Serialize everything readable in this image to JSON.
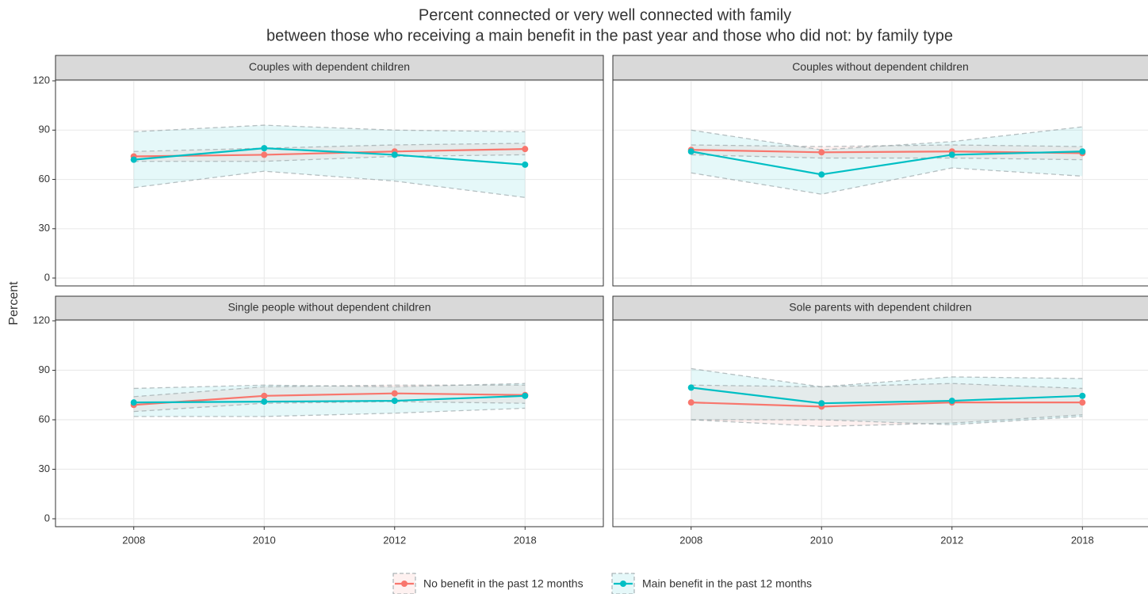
{
  "chart_data": {
    "type": "line",
    "title": "Percent connected or very well connected with family",
    "subtitle": "between those who receiving a main benefit in the past year and those who did not: by family type",
    "ylabel": "Percent",
    "categories": [
      "2008",
      "2010",
      "2012",
      "2018"
    ],
    "ylim": [
      -4.8,
      120.5
    ],
    "yticks": [
      0,
      30,
      60,
      90,
      120
    ],
    "grid": true,
    "legend_position": "bottom",
    "legend": [
      {
        "name": "No benefit in the past 12 months",
        "color": "#F8766D"
      },
      {
        "name": "Main benefit in the past 12 months",
        "color": "#00BFC4"
      }
    ],
    "panels": [
      {
        "title": "Couples with dependent children",
        "series": [
          {
            "values": [
              74,
              75,
              77,
              78.5
            ],
            "upper": [
              77,
              79,
              81,
              82
            ],
            "lower": [
              71,
              71,
              74,
              75
            ]
          },
          {
            "values": [
              72,
              79,
              75,
              69
            ],
            "upper": [
              89,
              93,
              90,
              89
            ],
            "lower": [
              55,
              65,
              59,
              49
            ]
          }
        ]
      },
      {
        "title": "Couples without dependent children",
        "series": [
          {
            "values": [
              78,
              76.5,
              77,
              76
            ],
            "upper": [
              81,
              80,
              81,
              80
            ],
            "lower": [
              75,
              73,
              73,
              72
            ]
          },
          {
            "values": [
              77,
              63,
              75,
              77
            ],
            "upper": [
              90,
              78,
              83,
              92
            ],
            "lower": [
              64,
              51,
              67,
              62
            ]
          }
        ]
      },
      {
        "title": "Single people without dependent children",
        "series": [
          {
            "values": [
              69,
              74.5,
              76,
              75
            ],
            "upper": [
              74,
              80,
              81,
              81
            ],
            "lower": [
              65,
              70,
              71,
              70
            ]
          },
          {
            "values": [
              70.5,
              71,
              71.5,
              74.5
            ],
            "upper": [
              79,
              81,
              80,
              82
            ],
            "lower": [
              62,
              62,
              64,
              67
            ]
          }
        ]
      },
      {
        "title": "Sole parents with dependent children",
        "series": [
          {
            "values": [
              70.5,
              68,
              70.5,
              70.5
            ],
            "upper": [
              81,
              80,
              82,
              79
            ],
            "lower": [
              60,
              56,
              58,
              63
            ]
          },
          {
            "values": [
              79.5,
              70,
              71.5,
              74.5
            ],
            "upper": [
              91,
              80,
              86,
              85
            ],
            "lower": [
              60,
              60,
              57,
              62
            ]
          }
        ]
      }
    ]
  }
}
